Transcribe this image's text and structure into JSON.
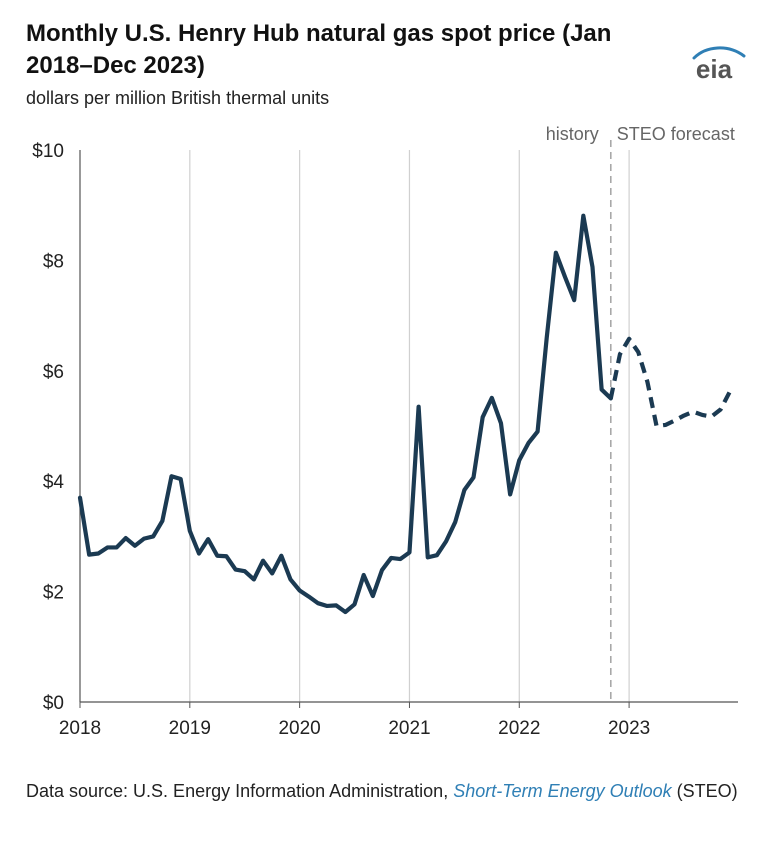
{
  "header": {
    "title": "Monthly U.S. Henry Hub natural gas spot price (Jan 2018–Dec 2023)",
    "subtitle": "dollars per million British thermal units",
    "logo_text": "eia"
  },
  "footer": {
    "source_prefix": "Data source: U.S. Energy Information Administration, ",
    "source_link": "Short-Term Energy Outlook",
    "source_suffix": " (STEO)"
  },
  "colors": {
    "series": "#1b3a52",
    "grid": "#d0d0d0",
    "divider": "#a8a8a8",
    "link": "#2f7fb5"
  },
  "chart_data": {
    "type": "line",
    "title": "Monthly U.S. Henry Hub natural gas spot price (Jan 2018–Dec 2023)",
    "ylabel": "dollars per million British thermal units",
    "ylim": [
      0,
      10
    ],
    "xlim": [
      "2018-01",
      "2023-12"
    ],
    "y_ticks": [
      0,
      2,
      4,
      6,
      8,
      10
    ],
    "y_tick_labels": [
      "$0",
      "$2",
      "$4",
      "$6",
      "$8",
      "$10"
    ],
    "x_ticks": [
      "2018-01",
      "2019-01",
      "2020-01",
      "2021-01",
      "2022-01",
      "2023-01"
    ],
    "x_tick_labels": [
      "2018",
      "2019",
      "2020",
      "2021",
      "2022",
      "2023"
    ],
    "grid": "vertical",
    "annotations": [
      {
        "text": "history",
        "at": "2022-11"
      },
      {
        "text": "STEO forecast",
        "at": "2022-11"
      }
    ],
    "forecast_start": "2022-11",
    "series": [
      {
        "style": "solid",
        "x": [
          "2018-01",
          "2018-02",
          "2018-03",
          "2018-04",
          "2018-05",
          "2018-06",
          "2018-07",
          "2018-08",
          "2018-09",
          "2018-10",
          "2018-11",
          "2018-12",
          "2019-01",
          "2019-02",
          "2019-03",
          "2019-04",
          "2019-05",
          "2019-06",
          "2019-07",
          "2019-08",
          "2019-09",
          "2019-10",
          "2019-11",
          "2019-12",
          "2020-01",
          "2020-02",
          "2020-03",
          "2020-04",
          "2020-05",
          "2020-06",
          "2020-07",
          "2020-08",
          "2020-09",
          "2020-10",
          "2020-11",
          "2020-12",
          "2021-01",
          "2021-02",
          "2021-03",
          "2021-04",
          "2021-05",
          "2021-06",
          "2021-07",
          "2021-08",
          "2021-09",
          "2021-10",
          "2021-11",
          "2021-12",
          "2022-01",
          "2022-02",
          "2022-03",
          "2022-04",
          "2022-05",
          "2022-06",
          "2022-07",
          "2022-08",
          "2022-09",
          "2022-10",
          "2022-11"
        ],
        "values": [
          3.7,
          2.67,
          2.69,
          2.8,
          2.8,
          2.97,
          2.83,
          2.96,
          3.0,
          3.28,
          4.09,
          4.04,
          3.1,
          2.69,
          2.95,
          2.65,
          2.64,
          2.4,
          2.37,
          2.22,
          2.56,
          2.33,
          2.65,
          2.22,
          2.02,
          1.91,
          1.79,
          1.74,
          1.75,
          1.63,
          1.77,
          2.3,
          1.92,
          2.39,
          2.61,
          2.59,
          2.71,
          5.35,
          2.62,
          2.66,
          2.91,
          3.26,
          3.84,
          4.07,
          5.16,
          5.51,
          5.05,
          3.76,
          4.38,
          4.69,
          4.9,
          6.6,
          8.14,
          7.7,
          7.28,
          8.81,
          7.88,
          5.66,
          5.5
        ]
      },
      {
        "style": "dashed",
        "x": [
          "2022-11",
          "2022-12",
          "2023-01",
          "2023-02",
          "2023-03",
          "2023-04",
          "2023-05",
          "2023-06",
          "2023-07",
          "2023-08",
          "2023-09",
          "2023-10",
          "2023-11",
          "2023-12"
        ],
        "values": [
          5.5,
          6.3,
          6.58,
          6.34,
          5.8,
          5.0,
          5.02,
          5.1,
          5.19,
          5.26,
          5.2,
          5.17,
          5.3,
          5.62
        ]
      }
    ]
  }
}
